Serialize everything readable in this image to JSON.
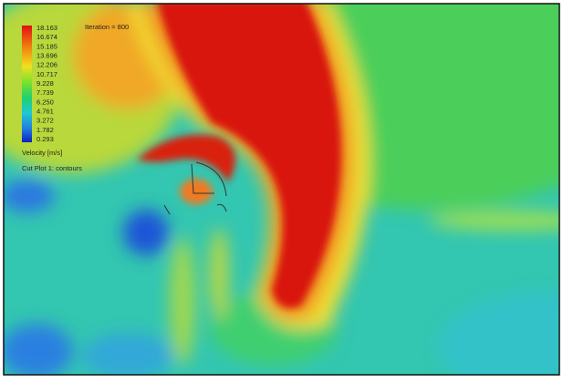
{
  "overlay": {
    "iteration": "Iteration = 800",
    "legend": {
      "labels": [
        "18.163",
        "16.674",
        "15.185",
        "13.696",
        "12.206",
        "10.717",
        "9.228",
        "7.739",
        "6.250",
        "4.761",
        "3.272",
        "1.782",
        "0.293"
      ],
      "quantity": "Velocity [m/s]"
    },
    "plot_name": "Cut Plot 1: contours"
  }
}
